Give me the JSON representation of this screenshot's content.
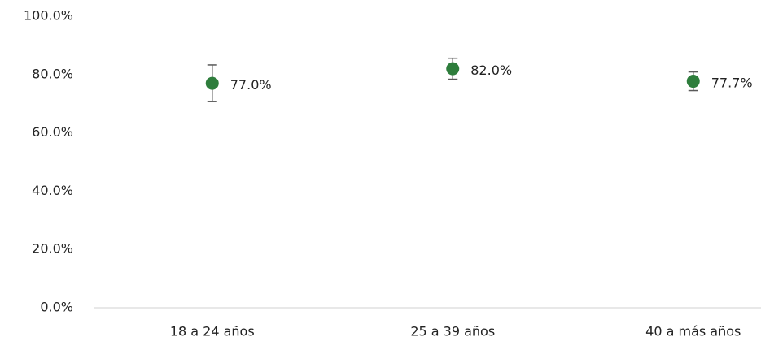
{
  "chart_data": {
    "type": "dot",
    "categories": [
      "18 a 24 años",
      "25 a 39 años",
      "40 a más años"
    ],
    "values": [
      77.0,
      82.0,
      77.7
    ],
    "value_labels": [
      "77.0%",
      "82.0%",
      "77.7%"
    ],
    "errors": [
      6.3,
      3.6,
      3.2
    ],
    "color": "#2e7d3c",
    "error_color": "#595959",
    "ylim": [
      0,
      100
    ],
    "yticks": [
      {
        "value": 0,
        "label": "0.0%"
      },
      {
        "value": 20,
        "label": "20.0%"
      },
      {
        "value": 40,
        "label": "40.0%"
      },
      {
        "value": 60,
        "label": "60.0%"
      },
      {
        "value": 80,
        "label": "80.0%"
      },
      {
        "value": 100,
        "label": "100.0%"
      }
    ],
    "grid": false
  }
}
